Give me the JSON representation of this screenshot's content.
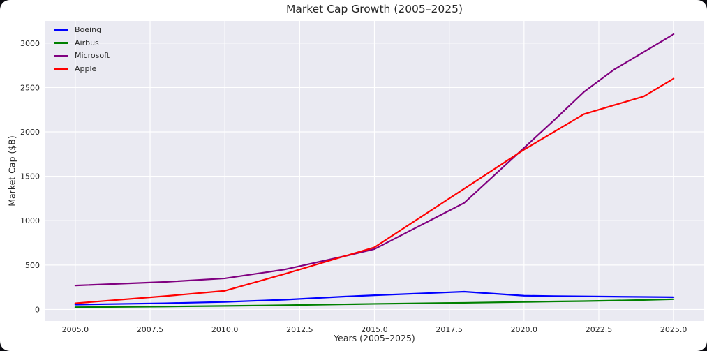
{
  "window": {
    "background": "#0a0a10",
    "figure_background": "#ffffff"
  },
  "chart_data": {
    "type": "line",
    "title": "Market Cap Growth (2005–2025)",
    "xlabel": "Years (2005–2025)",
    "ylabel": "Market Cap ($B)",
    "x": [
      2005,
      2008,
      2010,
      2012,
      2014,
      2015,
      2018,
      2020,
      2021,
      2022,
      2023,
      2024,
      2025
    ],
    "series": [
      {
        "name": "Boeing",
        "color": "#0000ff",
        "values": [
          55,
          70,
          85,
          110,
          145,
          160,
          200,
          155,
          150,
          147,
          144,
          141,
          138
        ]
      },
      {
        "name": "Airbus",
        "color": "#008000",
        "values": [
          25,
          33,
          40,
          48,
          58,
          63,
          75,
          85,
          90,
          94,
          100,
          107,
          115
        ]
      },
      {
        "name": "Microsoft",
        "color": "#800080",
        "values": [
          270,
          310,
          350,
          450,
          600,
          680,
          1200,
          1820,
          2130,
          2450,
          2700,
          2900,
          3100
        ]
      },
      {
        "name": "Apple",
        "color": "#ff0000",
        "values": [
          70,
          150,
          210,
          400,
          600,
          700,
          1360,
          1800,
          2000,
          2200,
          2300,
          2400,
          2600
        ]
      }
    ],
    "xlim": [
      2004,
      2026
    ],
    "ylim": [
      -130,
      3250
    ],
    "xticks": [
      2005.0,
      2007.5,
      2010.0,
      2012.5,
      2015.0,
      2017.5,
      2020.0,
      2022.5,
      2025.0
    ],
    "xtick_labels": [
      "2005.0",
      "2007.5",
      "2010.0",
      "2012.5",
      "2015.0",
      "2017.5",
      "2020.0",
      "2022.5",
      "2025.0"
    ],
    "yticks": [
      0,
      500,
      1000,
      1500,
      2000,
      2500,
      3000
    ],
    "ytick_labels": [
      "0",
      "500",
      "1000",
      "1500",
      "2000",
      "2500",
      "3000"
    ],
    "grid": true,
    "legend_position": "upper left",
    "plot_bg": "#eaeaf2",
    "grid_color": "#ffffff",
    "text_color": "#262626",
    "line_width": 2.2
  }
}
